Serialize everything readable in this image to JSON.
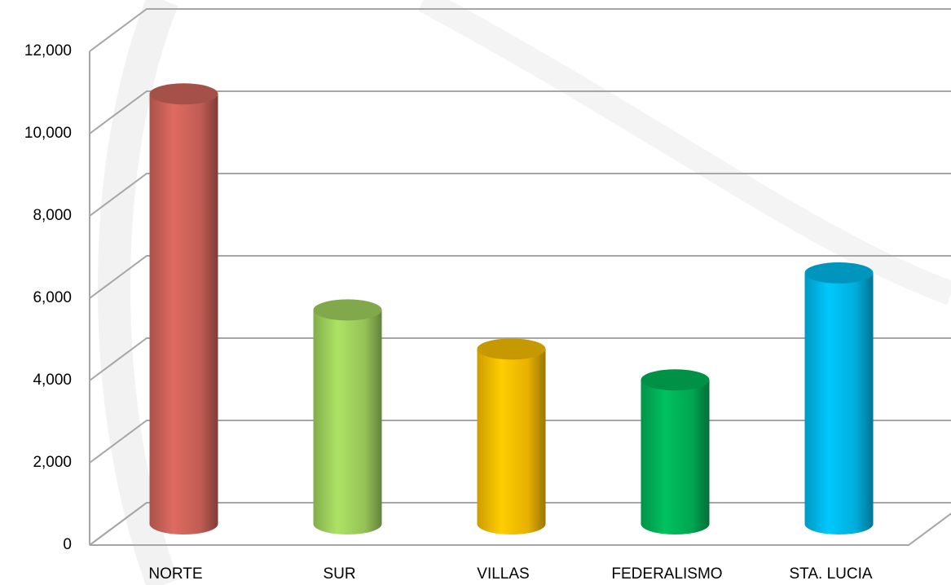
{
  "chart_data": {
    "type": "bar3d",
    "categories": [
      "NORTE",
      "SUR",
      "VILLAS",
      "FEDERALISMO",
      "STA. LUCIA"
    ],
    "values": [
      10450,
      5200,
      4250,
      3500,
      6100
    ],
    "colors": [
      "#d4665c",
      "#a5d860",
      "#ffc400",
      "#00b85a",
      "#00bff2"
    ],
    "ylim": [
      0,
      12000
    ],
    "yticks": [
      0,
      {
        "value": 2000,
        "label": "2,000"
      },
      {
        "value": 4000,
        "label": "4,000"
      },
      {
        "value": 6000,
        "label": "6,000"
      },
      {
        "value": 8000,
        "label": "8,000"
      },
      {
        "value": 10000,
        "label": "10,000"
      },
      {
        "value": 12000,
        "label": "12,000"
      }
    ],
    "grid": true
  }
}
